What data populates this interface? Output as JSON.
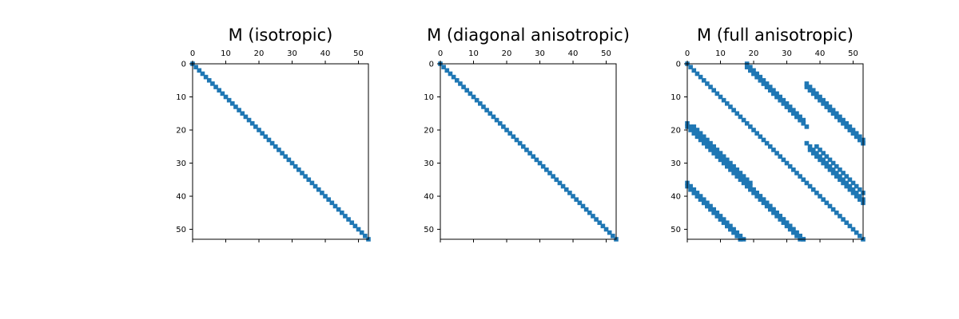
{
  "chart_data": [
    {
      "type": "heatmap",
      "title": "M (isotropic)",
      "matrix_size": 54,
      "xlim": [
        0,
        53
      ],
      "ylim": [
        53,
        0
      ],
      "x_ticks": [
        "0",
        "10",
        "20",
        "30",
        "40",
        "50"
      ],
      "y_ticks": [
        "0",
        "10",
        "20",
        "30",
        "40",
        "50"
      ],
      "marker_color": "#1f77b4",
      "nonzeros": [
        {
          "row_start": 0,
          "col_start": 0,
          "length": 54
        }
      ]
    },
    {
      "type": "heatmap",
      "title": "M (diagonal anisotropic)",
      "matrix_size": 54,
      "xlim": [
        0,
        53
      ],
      "ylim": [
        53,
        0
      ],
      "x_ticks": [
        "0",
        "10",
        "20",
        "30",
        "40",
        "50"
      ],
      "y_ticks": [
        "0",
        "10",
        "20",
        "30",
        "40",
        "50"
      ],
      "marker_color": "#1f77b4",
      "nonzeros": [
        {
          "row_start": 0,
          "col_start": 0,
          "length": 54
        }
      ]
    },
    {
      "type": "heatmap",
      "title": "M (full anisotropic)",
      "matrix_size": 54,
      "xlim": [
        0,
        53
      ],
      "ylim": [
        53,
        0
      ],
      "x_ticks": [
        "0",
        "10",
        "20",
        "30",
        "40",
        "50"
      ],
      "y_ticks": [
        "0",
        "10",
        "20",
        "30",
        "40",
        "50"
      ],
      "marker_color": "#1f77b4",
      "nonzeros": [
        {
          "row_start": 0,
          "col_start": 0,
          "length": 54
        },
        {
          "row_start": 0,
          "col_start": 18,
          "length": 18
        },
        {
          "row_start": 1,
          "col_start": 18,
          "length": 18
        },
        {
          "row_start": 2,
          "col_start": 19,
          "length": 18
        },
        {
          "row_start": 6,
          "col_start": 36,
          "length": 18
        },
        {
          "row_start": 7,
          "col_start": 36,
          "length": 18
        },
        {
          "row_start": 8,
          "col_start": 37,
          "length": 17
        },
        {
          "row_start": 18,
          "col_start": 0,
          "length": 18
        },
        {
          "row_start": 19,
          "col_start": 0,
          "length": 18
        },
        {
          "row_start": 19,
          "col_start": 2,
          "length": 18
        },
        {
          "row_start": 24,
          "col_start": 36,
          "length": 18
        },
        {
          "row_start": 25,
          "col_start": 39,
          "length": 15
        },
        {
          "row_start": 26,
          "col_start": 37,
          "length": 17
        },
        {
          "row_start": 36,
          "col_start": 0,
          "length": 18
        },
        {
          "row_start": 37,
          "col_start": 0,
          "length": 18
        },
        {
          "row_start": 38,
          "col_start": 1,
          "length": 16
        },
        {
          "row_start": 36,
          "col_start": 18,
          "length": 18
        },
        {
          "row_start": 37,
          "col_start": 18,
          "length": 18
        },
        {
          "row_start": 38,
          "col_start": 20,
          "length": 16
        }
      ]
    }
  ]
}
